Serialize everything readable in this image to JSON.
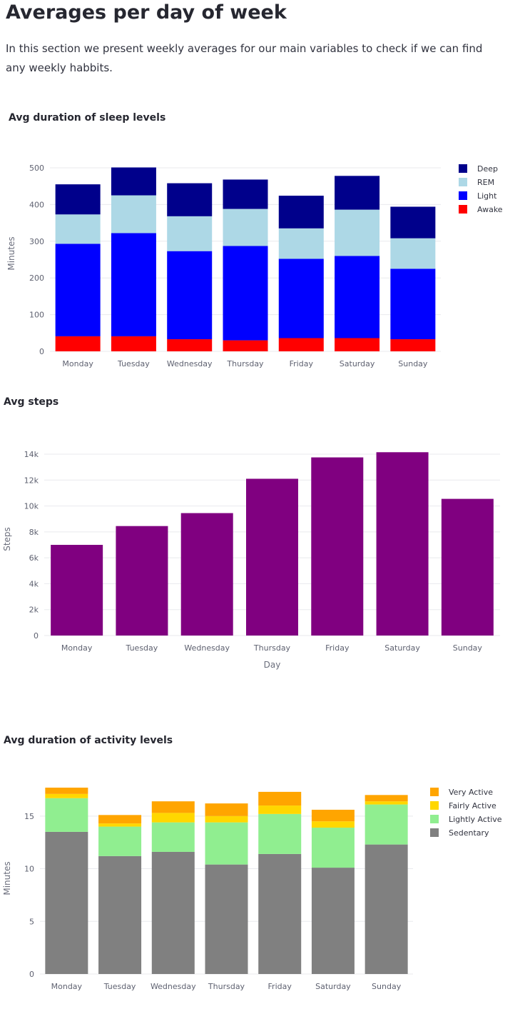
{
  "header": {
    "title": "Averages per day of week",
    "intro": "In this section we present weekly averages for our main variables to check if we can find any weekly habbits."
  },
  "chart_data": [
    {
      "id": "sleep",
      "type": "bar",
      "stacked": true,
      "title": "Avg duration of sleep levels",
      "xlabel": "",
      "ylabel": "Minutes",
      "ylim": [
        0,
        500
      ],
      "yticks": [
        0,
        100,
        200,
        300,
        400,
        500
      ],
      "ytick_labels": [
        "0",
        "100",
        "200",
        "300",
        "400",
        "500"
      ],
      "categories": [
        "Monday",
        "Tuesday",
        "Wednesday",
        "Thursday",
        "Friday",
        "Saturday",
        "Sunday"
      ],
      "series": [
        {
          "name": "Awake",
          "color": "#ff0000",
          "values": [
            41,
            41,
            33,
            30,
            36,
            36,
            33
          ]
        },
        {
          "name": "Light",
          "color": "#0000ff",
          "values": [
            252,
            281,
            240,
            257,
            216,
            224,
            192
          ]
        },
        {
          "name": "REM",
          "color": "#add8e6",
          "values": [
            80,
            103,
            95,
            101,
            83,
            126,
            83
          ]
        },
        {
          "name": "Deep",
          "color": "#00008b",
          "values": [
            82,
            76,
            90,
            80,
            89,
            92,
            86
          ]
        }
      ],
      "legend_order": [
        "Deep",
        "REM",
        "Light",
        "Awake"
      ],
      "legend": "right",
      "grid": true
    },
    {
      "id": "steps",
      "type": "bar",
      "title": "Avg steps",
      "xlabel": "Day",
      "ylabel": "Steps",
      "ylim": [
        0,
        14000
      ],
      "yticks": [
        0,
        2000,
        4000,
        6000,
        8000,
        10000,
        12000,
        14000
      ],
      "ytick_labels": [
        "0",
        "2k",
        "4k",
        "6k",
        "8k",
        "10k",
        "12k",
        "14k"
      ],
      "categories": [
        "Monday",
        "Tuesday",
        "Wednesday",
        "Thursday",
        "Friday",
        "Saturday",
        "Sunday"
      ],
      "series": [
        {
          "color": "#800080",
          "values": [
            7000,
            8450,
            9450,
            12100,
            13750,
            14150,
            10550
          ]
        }
      ],
      "grid": true
    },
    {
      "id": "activity",
      "type": "bar",
      "stacked": true,
      "title": "Avg duration of activity levels",
      "xlabel": "",
      "ylabel": "Minutes",
      "ylim": [
        0,
        17.7
      ],
      "yticks": [
        0,
        5,
        10,
        15
      ],
      "ytick_labels": [
        "0",
        "5",
        "10",
        "15"
      ],
      "categories": [
        "Monday",
        "Tuesday",
        "Wednesday",
        "Thursday",
        "Friday",
        "Saturday",
        "Sunday"
      ],
      "series": [
        {
          "name": "Sedentary",
          "color": "#808080",
          "values": [
            13.5,
            11.2,
            11.6,
            10.4,
            11.4,
            10.1,
            12.3
          ]
        },
        {
          "name": "Lightly Active",
          "color": "#90ee90",
          "values": [
            3.2,
            2.8,
            2.8,
            4.0,
            3.8,
            3.8,
            3.8
          ]
        },
        {
          "name": "Fairly Active",
          "color": "#ffd700",
          "values": [
            0.4,
            0.3,
            0.9,
            0.6,
            0.8,
            0.6,
            0.3
          ]
        },
        {
          "name": "Very Active",
          "color": "#ffa500",
          "values": [
            0.6,
            0.8,
            1.1,
            1.2,
            1.3,
            1.1,
            0.6
          ]
        }
      ],
      "legend_order": [
        "Very Active",
        "Fairly Active",
        "Lightly Active",
        "Sedentary"
      ],
      "legend": "right",
      "grid": true
    }
  ]
}
